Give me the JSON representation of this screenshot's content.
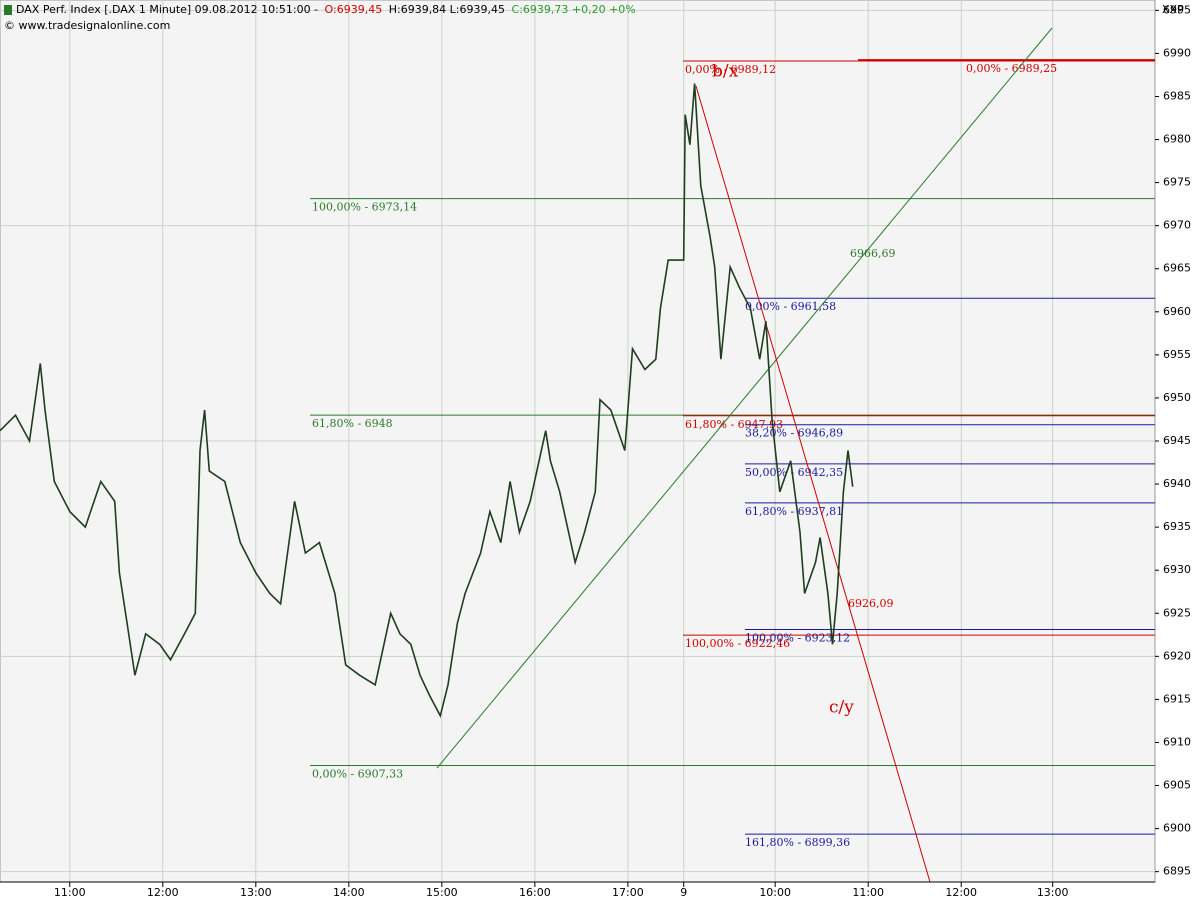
{
  "chart_data": {
    "type": "line",
    "title": "DAX Perf. Index [.DAX  1 Minute] 09.08.2012 10:51:00 -",
    "header_open": "O:6939,45",
    "header_hl": "H:6939,84 L:6939,45",
    "header_close": "C:6939,73 +0,20 +0%",
    "subtitle": "© www.tradesignalonline.com",
    "corner_label": "XXP",
    "xlim": [
      0,
      745
    ],
    "ylim": [
      6893.8,
      6996.2
    ],
    "grid": true,
    "xticks": [
      {
        "value": 45,
        "label": "11:00"
      },
      {
        "value": 105,
        "label": "12:00"
      },
      {
        "value": 165,
        "label": "13:00"
      },
      {
        "value": 225,
        "label": "14:00"
      },
      {
        "value": 285,
        "label": "15:00"
      },
      {
        "value": 345,
        "label": "16:00"
      },
      {
        "value": 405,
        "label": "17:00"
      },
      {
        "value": 441,
        "label": "9"
      },
      {
        "value": 500,
        "label": "10:00"
      },
      {
        "value": 560,
        "label": "11:00"
      },
      {
        "value": 620,
        "label": "12:00"
      },
      {
        "value": 679,
        "label": "13:00"
      }
    ],
    "yticks": [
      6895,
      6900,
      6905,
      6910,
      6915,
      6920,
      6925,
      6930,
      6935,
      6940,
      6945,
      6950,
      6955,
      6960,
      6965,
      6970,
      6975,
      6980,
      6985,
      6990,
      6995
    ],
    "series": [
      {
        "color": "#1f3d1f",
        "x": [
          0,
          10,
          19,
          26,
          29,
          35,
          45,
          55,
          65,
          74,
          77,
          83,
          87,
          94,
          103,
          110,
          119,
          126,
          129,
          132,
          135,
          145,
          155,
          165,
          174,
          181,
          190,
          197,
          206,
          216,
          223,
          232,
          242,
          252,
          258,
          265,
          271,
          277,
          284,
          289,
          295,
          300,
          310,
          316,
          323,
          329,
          335,
          342,
          352,
          355,
          361,
          371,
          377,
          384,
          387,
          394,
          403,
          408,
          416,
          423,
          426,
          431,
          441,
          442,
          445,
          448,
          452,
          458,
          461,
          465,
          471,
          477,
          484,
          490,
          494,
          498,
          503,
          510,
          516,
          519,
          526,
          529,
          534,
          537,
          540,
          544,
          547,
          550
        ],
        "values": [
          6946.2,
          6948,
          6945,
          6954,
          6948.6,
          6940.3,
          6936.8,
          6935,
          6940.3,
          6938,
          6929.7,
          6922.6,
          6917.8,
          6922.6,
          6921.4,
          6919.6,
          6922.6,
          6925,
          6943.9,
          6948.6,
          6941.5,
          6940.3,
          6933.2,
          6929.7,
          6927.3,
          6926.1,
          6938,
          6932,
          6933.2,
          6927.3,
          6919,
          6917.8,
          6916.7,
          6925,
          6922.6,
          6921.4,
          6917.8,
          6915.5,
          6913.1,
          6916.7,
          6923.8,
          6927.3,
          6932,
          6936.8,
          6933.2,
          6940.3,
          6934.4,
          6938,
          6946.2,
          6942.7,
          6939.1,
          6930.9,
          6934.4,
          6939.1,
          6949.8,
          6948.6,
          6943.9,
          6955.7,
          6953.3,
          6954.5,
          6960.4,
          6966,
          6966,
          6982.9,
          6979.4,
          6986.5,
          6974.6,
          6968.7,
          6965.2,
          6954.5,
          6965.2,
          6962.8,
          6960.4,
          6954.5,
          6958.9,
          6947.4,
          6939.1,
          6942.7,
          6934.4,
          6927.3,
          6930.9,
          6933.8,
          6927.3,
          6921.4,
          6927.3,
          6939.1,
          6943.9,
          6939.7
        ]
      }
    ],
    "levels": [
      {
        "value": 6973.14,
        "label": "100,00% - 6973,14",
        "color": "#2a7a2a"
      },
      {
        "value": 6948,
        "label": "61,80% - 6948",
        "color": "#2a7a2a"
      },
      {
        "value": 6907.33,
        "label": "0,00% - 6907,33",
        "color": "#2a7a2a"
      },
      {
        "value": 6989.12,
        "label": "0,00% - 6989,12",
        "color": "#d00000"
      },
      {
        "value": 6989.25,
        "label": "0,00% - 6989,25",
        "color": "#d00000"
      },
      {
        "value": 6947.93,
        "label": "61,80% - 6947,93",
        "color": "#d00000"
      },
      {
        "value": 6922.46,
        "label": "100,00% - 6922,46",
        "color": "#d00000"
      },
      {
        "value": 6961.58,
        "label": "0,00% - 6961,58",
        "color": "#1a1aa0"
      },
      {
        "value": 6946.89,
        "label": "38,20% - 6946,89",
        "color": "#1a1aa0"
      },
      {
        "value": 6942.35,
        "label": "50,00% - 6942,35",
        "color": "#1a1aa0"
      },
      {
        "value": 6937.81,
        "label": "61,80% - 6937,81",
        "color": "#1a1aa0"
      },
      {
        "value": 6923.12,
        "label": "100,00% - 6923,12",
        "color": "#1a1aa0"
      },
      {
        "value": 6899.36,
        "label": "161,80% - 6899,36",
        "color": "#1a1aa0"
      }
    ],
    "trendlines": [
      {
        "value": 6966.69,
        "label": "6966,69",
        "color": "#2a7a2a"
      },
      {
        "value": 6926.09,
        "label": "6926,09",
        "color": "#d00000"
      }
    ],
    "wave_labels": [
      "b/x",
      "c/y"
    ]
  }
}
